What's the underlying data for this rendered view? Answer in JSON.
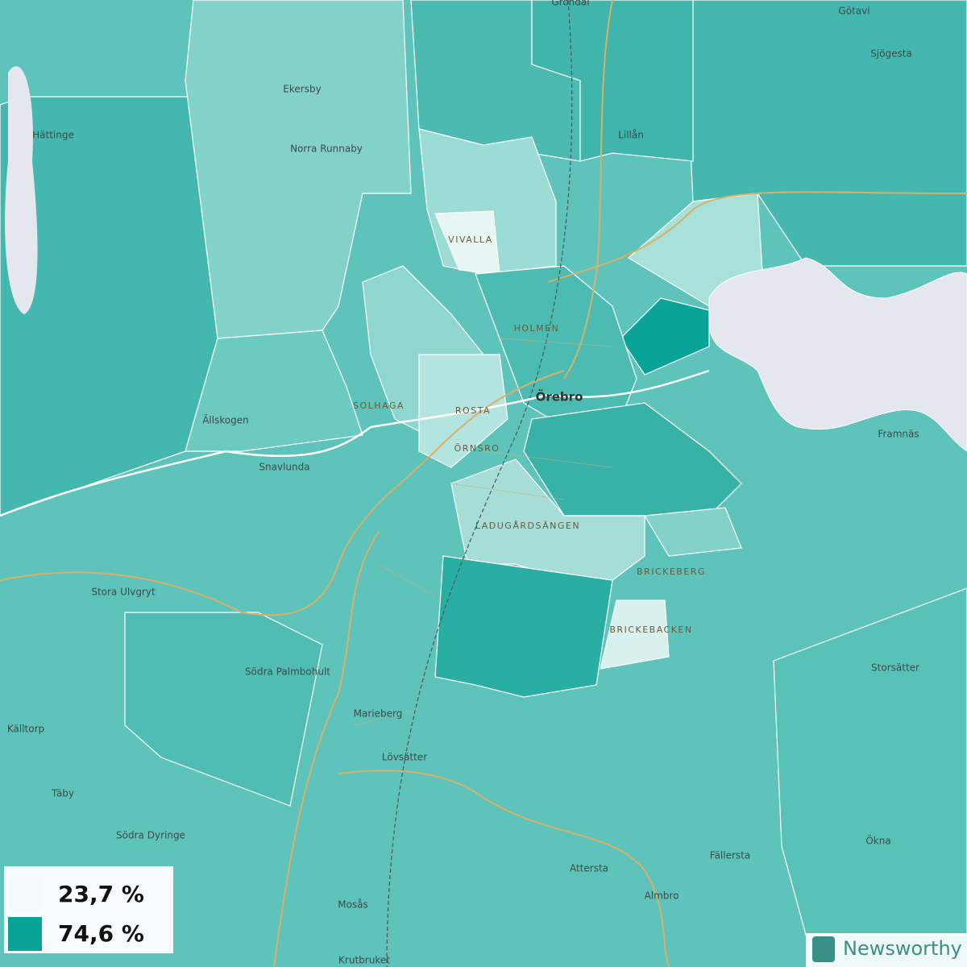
{
  "map": {
    "places": [
      "Grondal",
      "Götavi",
      "Sjögesta",
      "Ekersby",
      "Hättinge",
      "Norra Runnaby",
      "Lillån",
      "Ällskogen",
      "Snavlunda",
      "Framnäs",
      "Stora Ulvgryt",
      "Södra Palmbohult",
      "Marieberg",
      "Lövsätter",
      "Källtorp",
      "Täby",
      "Södra Dyringe",
      "Storsätter",
      "Ökna",
      "Fällersta",
      "Attersta",
      "Almbro",
      "Mosås",
      "Krutbruket"
    ],
    "city": "Örebro",
    "districts": [
      "VIVALLA",
      "HOLMEN",
      "SOLHAGA",
      "ROSTA",
      "ÖRNSRO",
      "LADUGÅRDSÄNGEN",
      "BRICKEBERG",
      "BRICKEBACKEN"
    ],
    "legend": [
      {
        "label": "23,7 %",
        "color": "#f4fbfa"
      },
      {
        "label": "74,6 %",
        "color": "#0aa398"
      }
    ],
    "brand": "Newsworthy"
  }
}
